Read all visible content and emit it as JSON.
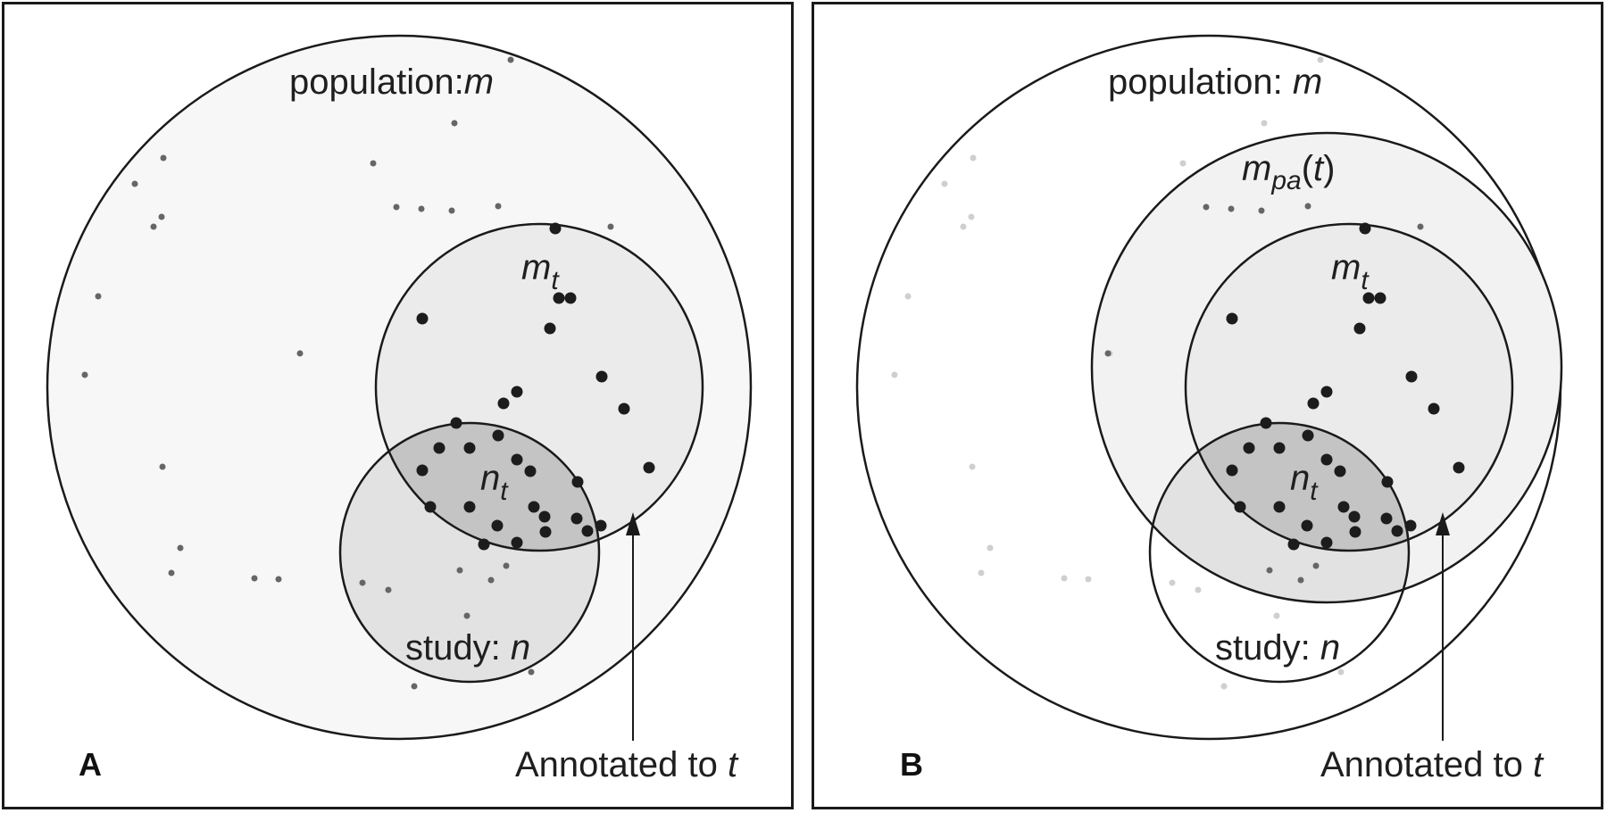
{
  "panels": {
    "a": {
      "letter": "A",
      "population_label": "population:",
      "population_var": "m",
      "mt_var": "m",
      "mt_sub": "t",
      "nt_var": "n",
      "nt_sub": "t",
      "study_label": "study: ",
      "study_var": "n",
      "annotated_label": "Annotated to ",
      "annotated_var": "t"
    },
    "b": {
      "letter": "B",
      "population_label": "population: ",
      "population_var": "m",
      "mpa_var": "m",
      "mpa_sub": "pa",
      "mpa_paren_open": "(",
      "mpa_arg": "t",
      "mpa_paren_close": ")",
      "mt_var": "m",
      "mt_sub": "t",
      "nt_var": "n",
      "nt_sub": "t",
      "study_label": "study: ",
      "study_var": "n",
      "annotated_label": "Annotated to ",
      "annotated_var": "t"
    }
  },
  "colors": {
    "stroke": "#1a1a1a",
    "population_fill": "#f7f7f7",
    "mpa_fill": "#f2f2f2",
    "mt_fill": "#ebebeb",
    "study_fill": "#e2e2e2",
    "overlap_fill": "#c4c4c4",
    "dot_strong": "#1c1c1c",
    "dot_medium": "#666666",
    "dot_faint": "#cfcfcf"
  }
}
